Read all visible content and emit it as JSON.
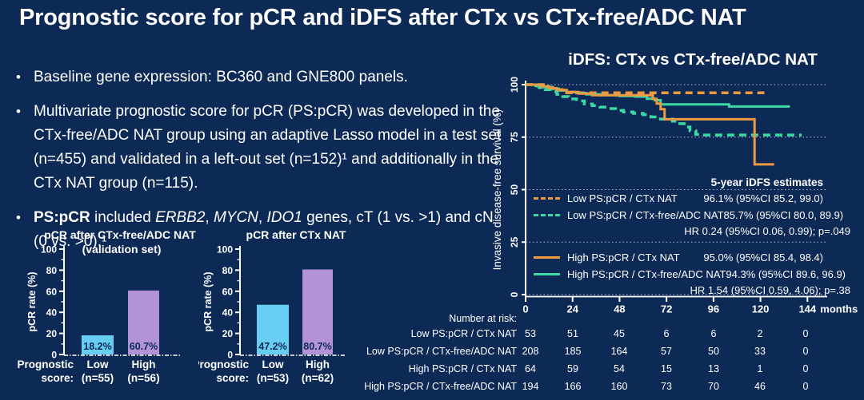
{
  "title": "Prognostic score for pCR and iDFS after CTx vs CTx-free/ADC NAT",
  "colors": {
    "background": "#0d2a56",
    "text": "#ffffff",
    "bar_low": "#68cdf2",
    "bar_high": "#b293d6",
    "orange": "#ee9a40",
    "green": "#3cd9a4",
    "label_on_bar": "#0d2a56"
  },
  "bullets": [
    {
      "segments": [
        {
          "t": "Baseline gene expression: BC360 and GNE800 panels.",
          "s": ""
        }
      ]
    },
    {
      "segments": [
        {
          "t": "Multivariate prognostic score for pCR (PS:pCR) was developed in the CTx-free/ADC NAT group using an adaptive Lasso model in a test set (n=455) and validated in a left-out set (n=152)¹ and additionally in the CTx NAT group (n=115).",
          "s": ""
        }
      ]
    },
    {
      "segments": [
        {
          "t": "PS:pCR",
          "s": "b"
        },
        {
          "t": " included ",
          "s": ""
        },
        {
          "t": "ERBB2",
          "s": "i"
        },
        {
          "t": ", ",
          "s": ""
        },
        {
          "t": "MYCN",
          "s": "i"
        },
        {
          "t": ", ",
          "s": ""
        },
        {
          "t": "IDO1",
          "s": "i"
        },
        {
          "t": " genes, cT (1 vs. >1) and cN (0 vs. >0).¹",
          "s": ""
        }
      ]
    }
  ],
  "chart_data": [
    {
      "type": "bar",
      "title": "pCR after CTx-free/ADC NAT",
      "subtitle": "(validation set)",
      "ylabel": "pCR rate (%)",
      "ylim": [
        0,
        100
      ],
      "yticks": [
        0,
        20,
        40,
        60,
        80,
        100
      ],
      "row_label": [
        "Prognostic",
        "score:"
      ],
      "categories": [
        [
          "Low",
          "(n=55)"
        ],
        [
          "High",
          "(n=56)"
        ]
      ],
      "values": [
        18.2,
        60.7
      ],
      "value_labels": [
        "18.2%",
        "60.7%"
      ],
      "bar_colors": [
        "#68cdf2",
        "#b293d6"
      ]
    },
    {
      "type": "bar",
      "title": "pCR after CTx NAT",
      "subtitle": "",
      "ylabel": "pCR rate (%)",
      "ylim": [
        0,
        100
      ],
      "yticks": [
        0,
        20,
        40,
        60,
        80,
        100
      ],
      "row_label": [
        "Prognostic",
        "score:"
      ],
      "categories": [
        [
          "Low",
          "(n=53)"
        ],
        [
          "High",
          "(n=62)"
        ]
      ],
      "values": [
        47.2,
        80.7
      ],
      "value_labels": [
        "47.2%",
        "80.7%"
      ],
      "bar_colors": [
        "#68cdf2",
        "#b293d6"
      ]
    },
    {
      "type": "line",
      "title": "iDFS: CTx vs CTx-free/ADC NAT",
      "ylabel": "Invasive disease-free survival (%)",
      "xunit": "months",
      "xticks": [
        0,
        24,
        48,
        72,
        96,
        120,
        144
      ],
      "yticks": [
        0,
        25,
        50,
        75,
        100
      ],
      "ylim": [
        0,
        100
      ],
      "xlim": [
        0,
        154
      ],
      "grid": true,
      "series": [
        {
          "name": "Low PS:pCR / CTx NAT",
          "color": "#ee9a40",
          "dash": true,
          "points": [
            [
              0,
              100
            ],
            [
              10,
              98.7
            ],
            [
              15,
              97.6
            ],
            [
              20,
              96.1
            ],
            [
              122,
              96.1
            ]
          ]
        },
        {
          "name": "Low PS:pCR / CTx-free/ADC NAT",
          "color": "#3cd9a4",
          "dash": true,
          "points": [
            [
              0,
              100
            ],
            [
              4,
              99.3
            ],
            [
              7,
              98.6
            ],
            [
              10,
              97.6
            ],
            [
              13,
              96.6
            ],
            [
              16,
              95.4
            ],
            [
              19,
              94.3
            ],
            [
              22,
              93.2
            ],
            [
              26,
              92.2
            ],
            [
              30,
              90.8
            ],
            [
              34,
              90
            ],
            [
              38,
              89.3
            ],
            [
              42,
              88.6
            ],
            [
              46,
              87.7
            ],
            [
              50,
              87
            ],
            [
              55,
              86.3
            ],
            [
              60,
              85.7
            ],
            [
              64,
              84.6
            ],
            [
              67,
              83.6
            ],
            [
              75,
              82.6
            ],
            [
              78,
              81.4
            ],
            [
              81,
              79.8
            ],
            [
              84,
              78
            ],
            [
              87,
              76.3
            ],
            [
              90,
              76
            ],
            [
              141,
              76
            ]
          ]
        },
        {
          "name": "High PS:pCR / CTx NAT",
          "color": "#ee9a40",
          "dash": false,
          "points": [
            [
              0,
              100
            ],
            [
              8,
              99.2
            ],
            [
              12,
              98.3
            ],
            [
              16,
              97.4
            ],
            [
              21,
              96.5
            ],
            [
              27,
              95.7
            ],
            [
              34,
              95
            ],
            [
              65,
              93.2
            ],
            [
              67,
              91
            ],
            [
              69,
              88.3
            ],
            [
              71,
              83.5
            ],
            [
              117,
              62
            ],
            [
              127,
              62
            ]
          ]
        },
        {
          "name": "High PS:pCR / CTx-free/ADC NAT",
          "color": "#3cd9a4",
          "dash": false,
          "points": [
            [
              0,
              100
            ],
            [
              5,
              99.4
            ],
            [
              9,
              98.8
            ],
            [
              13,
              98
            ],
            [
              17,
              97.2
            ],
            [
              21,
              96.5
            ],
            [
              26,
              96
            ],
            [
              31,
              95.4
            ],
            [
              38,
              95
            ],
            [
              48,
              94.6
            ],
            [
              56,
              94.3
            ],
            [
              62,
              93.3
            ],
            [
              66,
              92.6
            ],
            [
              69,
              90.6
            ],
            [
              104,
              89.6
            ],
            [
              135,
              89.6
            ]
          ]
        }
      ],
      "legend": {
        "header": "5-year iDFS estimates",
        "groups": [
          {
            "rows": [
              {
                "series": 0,
                "label": "Low PS:pCR / CTx NAT",
                "estimate": "96.1% (95%CI 85.2, 99.0)"
              },
              {
                "series": 1,
                "label": "Low PS:pCR / CTx-free/ADC NAT",
                "estimate": "85.7% (95%CI 80.0, 89.9)"
              }
            ],
            "hr": "HR 0.24 (95%CI 0.06, 0.99); p=.049"
          },
          {
            "rows": [
              {
                "series": 2,
                "label": "High PS:pCR / CTx NAT",
                "estimate": "95.0% (95%CI 85.4, 98.4)"
              },
              {
                "series": 3,
                "label": "High PS:pCR / CTx-free/ADC NAT",
                "estimate": "94.3% (95%CI 89.6, 96.9)"
              }
            ],
            "hr": "HR 1.54 (95%CI 0.59, 4.06); p=.38"
          }
        ]
      },
      "number_at_risk": {
        "header": "Number at risk:",
        "rows": [
          {
            "label": "Low PS:pCR / CTx NAT",
            "values": [
              53,
              51,
              45,
              6,
              6,
              2,
              0
            ]
          },
          {
            "label": "Low PS:pCR / CTx-free/ADC NAT",
            "values": [
              208,
              185,
              164,
              57,
              50,
              33,
              0
            ]
          },
          {
            "label": "High PS:pCR / CTx NAT",
            "values": [
              64,
              59,
              54,
              15,
              13,
              1,
              0
            ]
          },
          {
            "label": "High PS:pCR / CTx-free/ADC NAT",
            "values": [
              194,
              166,
              160,
              73,
              70,
              46,
              0
            ]
          }
        ]
      }
    }
  ]
}
